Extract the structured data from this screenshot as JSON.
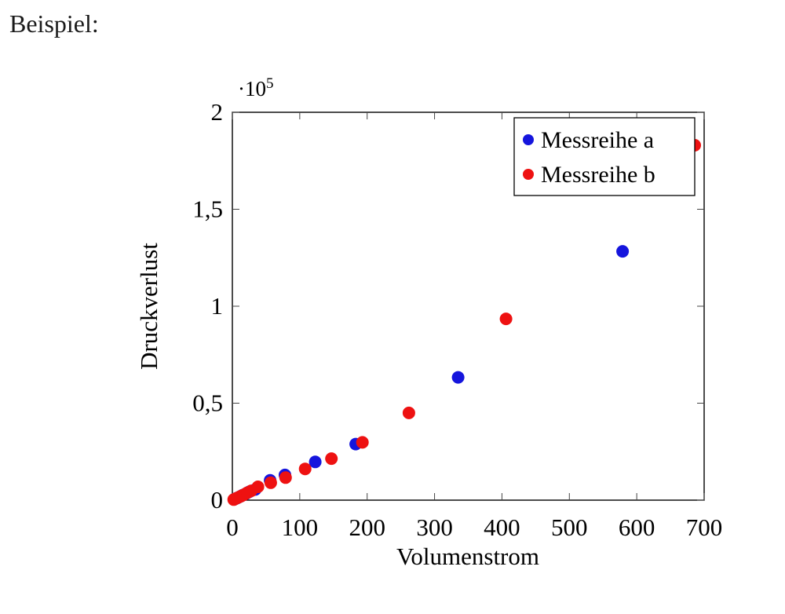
{
  "page": {
    "caption": "Beispiel:"
  },
  "chart_data": {
    "type": "scatter",
    "title": "",
    "xlabel": "Volumenstrom",
    "ylabel": "Druckverlust",
    "y_exponent": {
      "base": "·10",
      "power": "5"
    },
    "xlim": [
      0,
      700
    ],
    "ylim": [
      0,
      200000
    ],
    "grid": false,
    "legend_position": "top-right",
    "axis_color": "#000000",
    "tick_color": "#444444",
    "x_ticks": [
      {
        "value": 0,
        "label": "0"
      },
      {
        "value": 100,
        "label": "100"
      },
      {
        "value": 200,
        "label": "200"
      },
      {
        "value": 300,
        "label": "300"
      },
      {
        "value": 400,
        "label": "400"
      },
      {
        "value": 500,
        "label": "500"
      },
      {
        "value": 600,
        "label": "600"
      },
      {
        "value": 700,
        "label": "700"
      }
    ],
    "y_ticks": [
      {
        "value": 0,
        "label": "0"
      },
      {
        "value": 50000,
        "label": "0,5"
      },
      {
        "value": 100000,
        "label": "1"
      },
      {
        "value": 150000,
        "label": "1,5"
      },
      {
        "value": 200000,
        "label": "2"
      }
    ],
    "series": [
      {
        "name": "Messreihe a",
        "color": "#1515dd",
        "marker": "circle",
        "points": [
          [
            3,
            500
          ],
          [
            7,
            1100
          ],
          [
            11,
            1800
          ],
          [
            15,
            2500
          ],
          [
            20,
            3300
          ],
          [
            25,
            4300
          ],
          [
            34,
            5500
          ],
          [
            56,
            10200
          ],
          [
            78,
            13000
          ],
          [
            123,
            19700
          ],
          [
            183,
            28900
          ],
          [
            335,
            63300
          ],
          [
            579,
            128300
          ]
        ]
      },
      {
        "name": "Messreihe b",
        "color": "#ee1111",
        "marker": "circle",
        "points": [
          [
            2,
            300
          ],
          [
            5,
            800
          ],
          [
            9,
            1400
          ],
          [
            13,
            2100
          ],
          [
            17,
            2800
          ],
          [
            22,
            3800
          ],
          [
            28,
            4800
          ],
          [
            38,
            6900
          ],
          [
            57,
            9000
          ],
          [
            79,
            11600
          ],
          [
            108,
            16100
          ],
          [
            147,
            21400
          ],
          [
            193,
            29800
          ],
          [
            262,
            45000
          ],
          [
            406,
            93500
          ],
          [
            686,
            183000
          ]
        ]
      }
    ]
  }
}
